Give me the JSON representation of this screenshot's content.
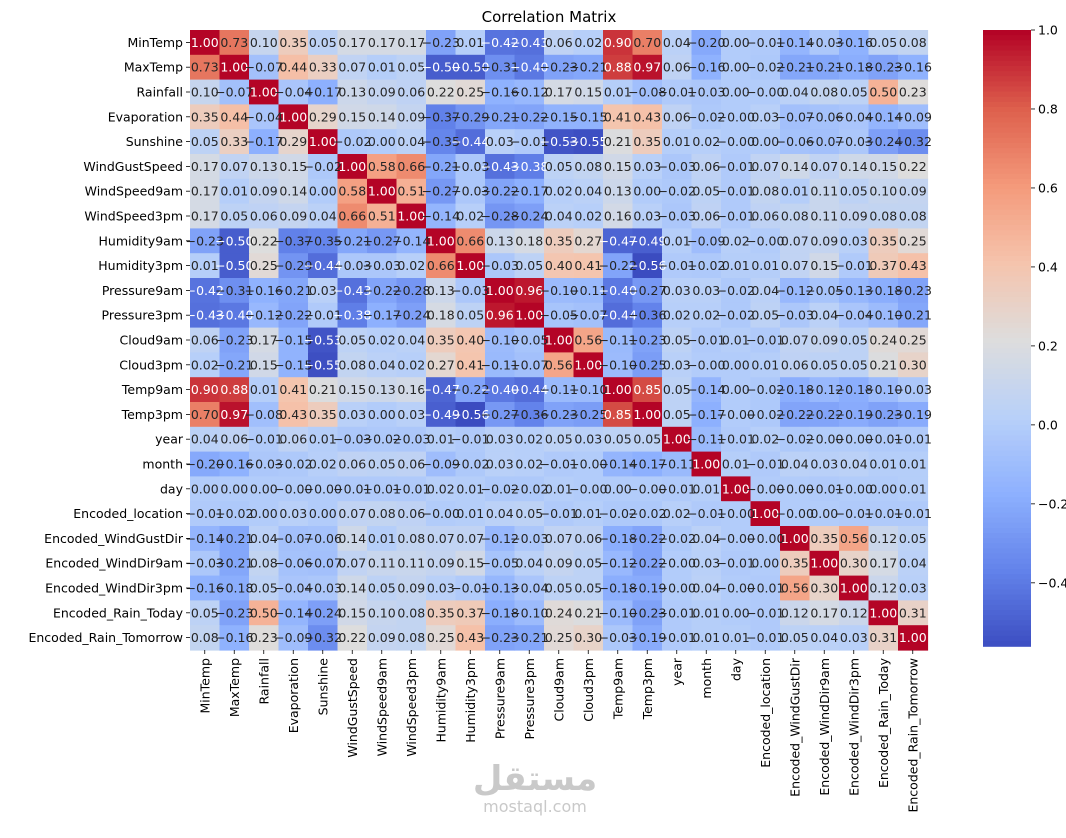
{
  "chart_data": {
    "type": "heatmap",
    "title": "Correlation Matrix",
    "labels": [
      "MinTemp",
      "MaxTemp",
      "Rainfall",
      "Evaporation",
      "Sunshine",
      "WindGustSpeed",
      "WindSpeed9am",
      "WindSpeed3pm",
      "Humidity9am",
      "Humidity3pm",
      "Pressure9am",
      "Pressure3pm",
      "Cloud9am",
      "Cloud3pm",
      "Temp9am",
      "Temp3pm",
      "year",
      "month",
      "day",
      "Encoded_location",
      "Encoded_WindGustDir",
      "Encoded_WindDir9am",
      "Encoded_WindDir3pm",
      "Encoded_Rain_Today",
      "Encoded_Rain_Tomorrow"
    ],
    "colormap": "coolwarm",
    "vmin": -0.56,
    "vmax": 1.0,
    "colorbar_ticks": [
      1.0,
      0.8,
      0.6,
      0.4,
      0.2,
      0.0,
      -0.2,
      -0.4
    ],
    "colorbar_tick_labels": [
      "1.0",
      "0.8",
      "0.6",
      "0.4",
      "0.2",
      "0.0",
      "−0.2",
      "−0.4"
    ],
    "matrix": [
      [
        1.0,
        0.73,
        0.1,
        0.35,
        0.05,
        0.17,
        0.17,
        0.17,
        -0.23,
        0.01,
        -0.42,
        -0.43,
        0.06,
        0.02,
        0.9,
        0.7,
        0.04,
        -0.2,
        0.0,
        -0.01,
        -0.14,
        -0.03,
        -0.16,
        0.05,
        0.08
      ],
      [
        0.73,
        1.0,
        -0.07,
        0.44,
        0.33,
        0.07,
        0.01,
        0.05,
        -0.5,
        -0.5,
        -0.31,
        -0.4,
        -0.23,
        -0.21,
        0.88,
        0.97,
        0.06,
        -0.16,
        0.0,
        -0.02,
        -0.21,
        -0.21,
        -0.18,
        -0.23,
        -0.16
      ],
      [
        0.1,
        -0.07,
        1.0,
        -0.04,
        -0.17,
        0.13,
        0.09,
        0.06,
        0.22,
        0.25,
        -0.16,
        -0.12,
        0.17,
        0.15,
        0.01,
        -0.08,
        -0.01,
        -0.03,
        0.0,
        -0.0,
        0.04,
        0.08,
        0.05,
        0.5,
        0.23
      ],
      [
        0.35,
        0.44,
        -0.04,
        1.0,
        0.29,
        0.15,
        0.14,
        0.09,
        -0.37,
        -0.29,
        -0.21,
        -0.22,
        -0.15,
        -0.15,
        0.41,
        0.43,
        0.06,
        -0.02,
        -0.0,
        0.03,
        -0.07,
        -0.06,
        -0.04,
        -0.14,
        -0.09
      ],
      [
        0.05,
        0.33,
        -0.17,
        0.29,
        1.0,
        -0.02,
        0.0,
        0.04,
        -0.35,
        -0.44,
        0.03,
        -0.01,
        -0.53,
        -0.55,
        0.21,
        0.35,
        0.01,
        0.02,
        -0.0,
        0.0,
        -0.06,
        -0.07,
        -0.03,
        -0.24,
        -0.32
      ],
      [
        0.17,
        0.07,
        0.13,
        0.15,
        -0.02,
        1.0,
        0.58,
        0.66,
        -0.21,
        -0.03,
        -0.43,
        -0.38,
        0.05,
        0.08,
        0.15,
        0.03,
        -0.03,
        0.06,
        -0.01,
        0.07,
        0.14,
        0.07,
        0.14,
        0.15,
        0.22
      ],
      [
        0.17,
        0.01,
        0.09,
        0.14,
        0.0,
        0.58,
        1.0,
        0.51,
        -0.27,
        -0.03,
        -0.22,
        -0.17,
        0.02,
        0.04,
        0.13,
        0.0,
        -0.02,
        0.05,
        -0.01,
        0.08,
        0.01,
        0.11,
        0.05,
        0.1,
        0.09
      ],
      [
        0.17,
        0.05,
        0.06,
        0.09,
        0.04,
        0.66,
        0.51,
        1.0,
        -0.14,
        0.02,
        -0.28,
        -0.24,
        0.04,
        0.02,
        0.16,
        0.03,
        -0.03,
        0.06,
        -0.01,
        0.06,
        0.08,
        0.11,
        0.09,
        0.08,
        0.08
      ],
      [
        -0.23,
        -0.5,
        0.22,
        -0.37,
        -0.35,
        -0.21,
        -0.27,
        -0.14,
        1.0,
        0.66,
        0.13,
        0.18,
        0.35,
        0.27,
        -0.47,
        -0.49,
        0.01,
        -0.09,
        0.02,
        -0.0,
        0.07,
        0.09,
        0.03,
        0.35,
        0.25
      ],
      [
        0.01,
        -0.5,
        0.25,
        -0.29,
        -0.44,
        -0.03,
        -0.03,
        0.02,
        0.66,
        1.0,
        -0.03,
        0.05,
        0.4,
        0.41,
        -0.22,
        -0.56,
        -0.01,
        -0.02,
        0.01,
        0.01,
        0.07,
        0.15,
        -0.01,
        0.37,
        0.43
      ],
      [
        -0.42,
        -0.31,
        -0.16,
        -0.21,
        0.03,
        -0.43,
        -0.22,
        -0.28,
        0.13,
        -0.03,
        1.0,
        0.96,
        -0.1,
        -0.11,
        -0.4,
        -0.27,
        0.03,
        0.03,
        -0.02,
        0.04,
        -0.12,
        -0.05,
        -0.13,
        -0.18,
        -0.23
      ],
      [
        -0.43,
        -0.4,
        -0.12,
        -0.22,
        -0.01,
        -0.38,
        -0.17,
        -0.24,
        0.18,
        0.05,
        0.96,
        1.0,
        -0.05,
        -0.07,
        -0.44,
        -0.36,
        0.02,
        0.02,
        -0.02,
        0.05,
        -0.03,
        0.04,
        -0.04,
        -0.1,
        -0.21
      ],
      [
        0.06,
        -0.23,
        0.17,
        -0.15,
        -0.53,
        0.05,
        0.02,
        0.04,
        0.35,
        0.4,
        -0.1,
        -0.05,
        1.0,
        0.56,
        -0.11,
        -0.23,
        0.05,
        -0.01,
        0.01,
        -0.01,
        0.07,
        0.09,
        0.05,
        0.24,
        0.25
      ],
      [
        0.02,
        -0.21,
        0.15,
        -0.15,
        -0.55,
        0.08,
        0.04,
        0.02,
        0.27,
        0.41,
        -0.11,
        -0.07,
        0.56,
        1.0,
        -0.1,
        -0.25,
        0.03,
        -0.0,
        0.0,
        0.01,
        0.06,
        0.05,
        0.05,
        0.21,
        0.3
      ],
      [
        0.9,
        0.88,
        0.01,
        0.41,
        0.21,
        0.15,
        0.13,
        0.16,
        -0.47,
        -0.22,
        -0.4,
        -0.44,
        -0.11,
        -0.1,
        1.0,
        0.85,
        0.05,
        -0.14,
        0.0,
        -0.02,
        -0.18,
        -0.12,
        -0.18,
        -0.1,
        -0.03
      ],
      [
        0.7,
        0.97,
        -0.08,
        0.43,
        0.35,
        0.03,
        0.0,
        0.03,
        -0.49,
        -0.56,
        -0.27,
        -0.36,
        -0.23,
        -0.25,
        0.85,
        1.0,
        0.05,
        -0.17,
        -0.0,
        -0.02,
        -0.22,
        -0.22,
        -0.19,
        -0.23,
        -0.19
      ],
      [
        0.04,
        0.06,
        -0.01,
        0.06,
        0.01,
        -0.03,
        -0.02,
        -0.03,
        0.01,
        -0.01,
        0.03,
        0.02,
        0.05,
        0.03,
        0.05,
        0.05,
        1.0,
        -0.11,
        -0.01,
        0.02,
        -0.02,
        -0.0,
        -0.0,
        -0.01,
        -0.01
      ],
      [
        -0.2,
        -0.16,
        -0.03,
        -0.02,
        0.02,
        0.06,
        0.05,
        0.06,
        -0.09,
        -0.02,
        0.03,
        0.02,
        -0.01,
        -0.0,
        -0.14,
        -0.17,
        -0.11,
        1.0,
        0.01,
        -0.01,
        0.04,
        0.03,
        0.04,
        0.01,
        0.01
      ],
      [
        0.0,
        0.0,
        0.0,
        -0.0,
        -0.0,
        -0.01,
        -0.01,
        -0.01,
        0.02,
        0.01,
        -0.02,
        -0.02,
        0.01,
        -0.0,
        0.0,
        -0.0,
        -0.01,
        0.01,
        1.0,
        -0.0,
        -0.0,
        -0.01,
        -0.0,
        0.0,
        0.01
      ],
      [
        -0.01,
        -0.02,
        0.0,
        0.03,
        0.0,
        0.07,
        0.08,
        0.06,
        -0.0,
        0.01,
        0.04,
        0.05,
        -0.01,
        0.01,
        -0.02,
        -0.02,
        0.02,
        -0.01,
        -0.0,
        1.0,
        -0.0,
        0.0,
        -0.01,
        -0.01,
        -0.01
      ],
      [
        -0.14,
        -0.21,
        0.04,
        -0.07,
        -0.06,
        0.14,
        0.01,
        0.08,
        0.07,
        0.07,
        -0.12,
        -0.03,
        0.07,
        0.06,
        -0.18,
        -0.22,
        -0.02,
        0.04,
        -0.0,
        -0.0,
        1.0,
        0.35,
        0.56,
        0.12,
        0.05
      ],
      [
        -0.03,
        -0.21,
        0.08,
        -0.06,
        -0.07,
        0.07,
        0.11,
        0.11,
        0.09,
        0.15,
        -0.05,
        0.04,
        0.09,
        0.05,
        -0.12,
        -0.22,
        -0.0,
        0.03,
        -0.01,
        0.0,
        0.35,
        1.0,
        0.3,
        0.17,
        0.04
      ],
      [
        -0.16,
        -0.18,
        0.05,
        -0.04,
        -0.03,
        0.14,
        0.05,
        0.09,
        0.03,
        -0.01,
        -0.13,
        -0.04,
        0.05,
        0.05,
        -0.18,
        -0.19,
        -0.0,
        0.04,
        -0.0,
        -0.01,
        0.56,
        0.3,
        1.0,
        0.12,
        0.03
      ],
      [
        0.05,
        -0.23,
        0.5,
        -0.14,
        -0.24,
        0.15,
        0.1,
        0.08,
        0.35,
        0.37,
        -0.18,
        -0.1,
        0.24,
        0.21,
        -0.1,
        -0.23,
        -0.01,
        0.01,
        0.0,
        -0.01,
        0.12,
        0.17,
        0.12,
        1.0,
        0.31
      ],
      [
        0.08,
        -0.16,
        0.23,
        -0.09,
        -0.32,
        0.22,
        0.09,
        0.08,
        0.25,
        0.43,
        -0.23,
        -0.21,
        0.25,
        0.3,
        -0.03,
        -0.19,
        -0.01,
        0.01,
        0.01,
        -0.01,
        0.05,
        0.04,
        0.03,
        0.31,
        1.0
      ]
    ]
  },
  "watermark": {
    "logo_text": "مستقل",
    "site_text": "mostaql.com"
  }
}
